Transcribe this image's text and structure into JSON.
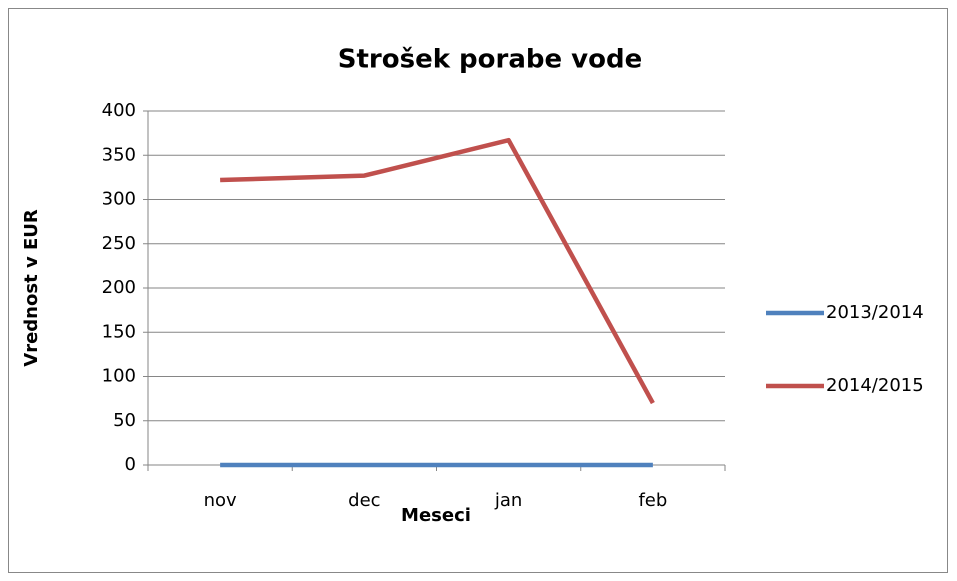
{
  "chart_data": {
    "type": "line",
    "title": "Strošek porabe vode",
    "x_label": "Meseci",
    "y_label": "Vrednost v EUR",
    "categories": [
      "nov",
      "dec",
      "jan",
      "feb"
    ],
    "series": [
      {
        "name": "2013/2014",
        "color": "#4f81bd",
        "values": [
          0,
          0,
          0,
          0
        ]
      },
      {
        "name": "2014/2015",
        "color": "#c0504d",
        "values": [
          322,
          327,
          367,
          70
        ]
      }
    ],
    "ylim": [
      0,
      400
    ],
    "yticks": [
      0,
      50,
      100,
      150,
      200,
      250,
      300,
      350,
      400
    ],
    "grid": true,
    "legend": "right"
  }
}
